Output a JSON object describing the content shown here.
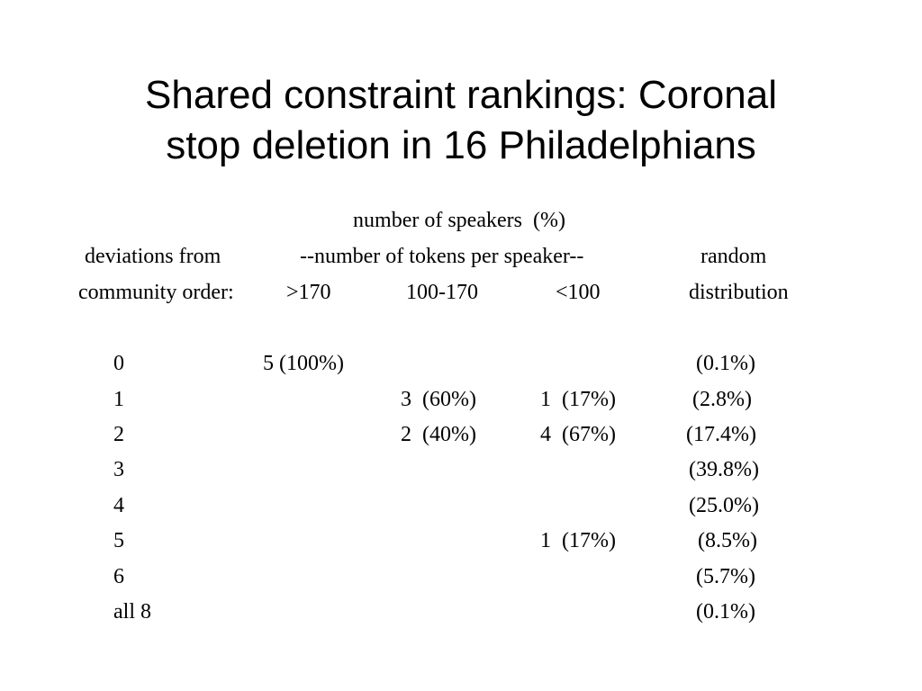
{
  "slide": {
    "title_line1": "Shared constraint rankings: Coronal",
    "title_line2": "stop deletion in 16 Philadelphians"
  },
  "table": {
    "header": {
      "group_label": "number of speakers  (%)",
      "deviations_label": "deviations from",
      "tokens_label": "--number of tokens per speaker--",
      "random_label": "random",
      "community_label": "community order:",
      "col_gt170": ">170",
      "col_100_170": "100-170",
      "col_lt100": "<100",
      "distribution_label": "distribution"
    },
    "rows": [
      {
        "deviations": "0",
        "gt170": "5 (100%)",
        "mid": "",
        "lt100": "",
        "random": "(0.1%)"
      },
      {
        "deviations": "1",
        "gt170": "",
        "mid": "3  (60%)",
        "lt100": "1  (17%)",
        "random": "(2.8%)"
      },
      {
        "deviations": "2",
        "gt170": "",
        "mid": "2  (40%)",
        "lt100": "4  (67%)",
        "random": "(17.4%)"
      },
      {
        "deviations": "3",
        "gt170": "",
        "mid": "",
        "lt100": "",
        "random": "(39.8%)"
      },
      {
        "deviations": "4",
        "gt170": "",
        "mid": "",
        "lt100": "",
        "random": "(25.0%)"
      },
      {
        "deviations": "5",
        "gt170": "",
        "mid": "",
        "lt100": "1  (17%)",
        "random": "(8.5%)"
      },
      {
        "deviations": "6",
        "gt170": "",
        "mid": "",
        "lt100": "",
        "random": "(5.7%)"
      },
      {
        "deviations": "all 8",
        "gt170": "",
        "mid": "",
        "lt100": "",
        "random": "(0.1%)"
      }
    ]
  }
}
